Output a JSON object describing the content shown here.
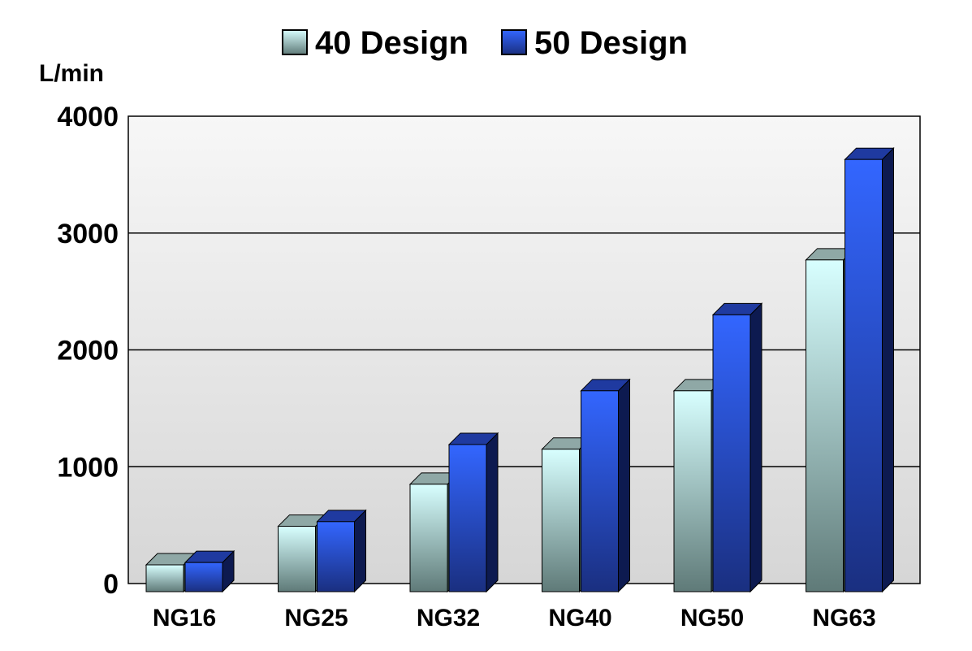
{
  "chart_data": {
    "type": "bar",
    "style": "3d-clustered",
    "categories": [
      "NG16",
      "NG25",
      "NG32",
      "NG40",
      "NG50",
      "NG63"
    ],
    "series": [
      {
        "name": "40 Design",
        "values": [
          160,
          490,
          850,
          1150,
          1650,
          2770
        ]
      },
      {
        "name": "50 Design",
        "values": [
          180,
          530,
          1190,
          1650,
          2300,
          3630
        ]
      }
    ],
    "ylabel": "L/min",
    "ylim": [
      0,
      4000
    ],
    "yticks": [
      0,
      1000,
      2000,
      3000,
      4000
    ],
    "grid": true,
    "legend_position": "top-center"
  },
  "colors": {
    "series_40_front_top": "#d8ffff",
    "series_40_front_bottom": "#5f7a78",
    "series_40_side": "#3b5250",
    "series_40_top": "#8fa8a6",
    "series_50_front_top": "#3366ff",
    "series_50_front_bottom": "#1a2f80",
    "series_50_side": "#0d1a50",
    "series_50_top": "#1f3aa0",
    "plot_bg_top": "#f7f7f7",
    "plot_bg_bottom": "#d6d6d6",
    "gridline": "#000000"
  }
}
